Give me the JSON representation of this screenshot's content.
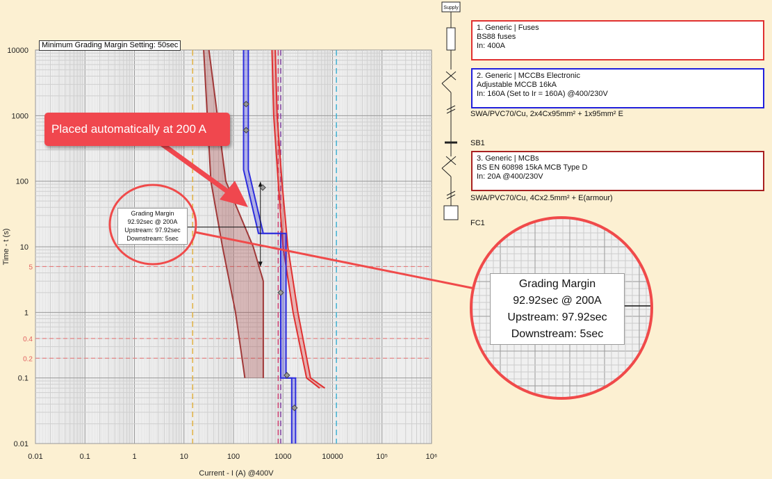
{
  "chart_data": {
    "type": "line",
    "title": "Minimum Grading Margin Setting: 50sec",
    "xlabel": "Current - I (A) @400V",
    "ylabel": "Time - t (s)",
    "xscale": "log",
    "yscale": "log",
    "xlim": [
      0.01,
      1000000
    ],
    "ylim": [
      0.01,
      10000
    ],
    "grid": true,
    "x_ticks": [
      "0.01",
      "0.1",
      "1",
      "10",
      "100",
      "1000",
      "10000",
      "10⁵",
      "10⁶"
    ],
    "y_ticks": [
      "0.01",
      "0.1",
      "1",
      "10",
      "100",
      "1000",
      "10000"
    ],
    "ref_time_lines": [
      5,
      0.4,
      0.2
    ],
    "ref_time_labels": [
      "5",
      "0.4",
      "0.2"
    ],
    "series": [
      {
        "name": "1. Generic | Fuses",
        "color": "#e03030",
        "min": [
          [
            600,
            10000
          ],
          [
            650,
            1000
          ],
          [
            800,
            100
          ],
          [
            1000,
            10
          ],
          [
            1600,
            1
          ],
          [
            3000,
            0.1
          ],
          [
            5500,
            0.07
          ]
        ],
        "max": [
          [
            700,
            10000
          ],
          [
            760,
            1000
          ],
          [
            950,
            100
          ],
          [
            1250,
            10
          ],
          [
            2000,
            1
          ],
          [
            3600,
            0.1
          ],
          [
            7000,
            0.07
          ]
        ]
      },
      {
        "name": "2. Generic | MCCBs Electronic",
        "color": "#2d2ddd",
        "min": [
          [
            160,
            10000
          ],
          [
            160,
            150
          ],
          [
            320,
            16
          ],
          [
            900,
            16
          ],
          [
            900,
            0.1
          ],
          [
            1500,
            0.1
          ],
          [
            1500,
            0.01
          ]
        ],
        "max": [
          [
            200,
            10000
          ],
          [
            200,
            150
          ],
          [
            400,
            16
          ],
          [
            1150,
            16
          ],
          [
            1150,
            0.1
          ],
          [
            1800,
            0.1
          ],
          [
            1800,
            0.01
          ]
        ]
      },
      {
        "name": "3. Generic | MCBs",
        "color": "#a03838",
        "min": [
          [
            25,
            10000
          ],
          [
            35,
            100
          ],
          [
            60,
            10
          ],
          [
            110,
            1
          ],
          [
            170,
            0.1
          ]
        ],
        "max": [
          [
            32,
            10000
          ],
          [
            70,
            100
          ],
          [
            250,
            10
          ],
          [
            400,
            3
          ],
          [
            400,
            0.1
          ]
        ]
      }
    ],
    "markers": [
      [
        180,
        1500
      ],
      [
        180,
        600
      ],
      [
        390,
        80
      ],
      [
        900,
        2
      ],
      [
        1200,
        0.11
      ],
      [
        1700,
        0.035
      ]
    ],
    "vlines": [
      {
        "x": 15,
        "color": "#e0b040"
      },
      {
        "x": 800,
        "color": "#d04070"
      },
      {
        "x": 900,
        "color": "#8040a0"
      },
      {
        "x": 12000,
        "color": "#40b0d0"
      }
    ],
    "grading_margin": {
      "current": 200,
      "upper": 97.92,
      "lower": 5,
      "line_x": 350,
      "label_x": 25,
      "label_y": 20
    }
  },
  "legend": {
    "fuse": {
      "line1": "1. Generic | Fuses",
      "line2": "BS88 fuses",
      "line3": "In: 400A"
    },
    "mccb": {
      "line1": "2. Generic | MCCBs Electronic",
      "line2": "Adjustable MCCB 16kA",
      "line3": "In: 160A (Set to Ir = 160A) @400/230V"
    },
    "mcb": {
      "line1": "3. Generic | MCBs",
      "line2": "BS EN 60898 15kA MCB Type D",
      "line3": "In: 20A @400/230V"
    },
    "colors": {
      "fuse": "#e03030",
      "mccb": "#2020dd",
      "mcb": "#a82020"
    }
  },
  "diagram": {
    "supply": "Supply",
    "cable1": "SWA/PVC70/Cu, 2x4Cx95mm² + 1x95mm² E",
    "busbar": "SB1",
    "cable2": "SWA/PVC70/Cu, 4Cx2.5mm² + E(armour)",
    "load": "FC1"
  },
  "callout": {
    "text": "Placed automatically at 200 A",
    "color": "#f0474e"
  },
  "grading_box": {
    "line1": "Grading Margin",
    "line2": "92.92sec @ 200A",
    "line3": "Upstream: 97.92sec",
    "line4": "Downstream: 5sec"
  }
}
